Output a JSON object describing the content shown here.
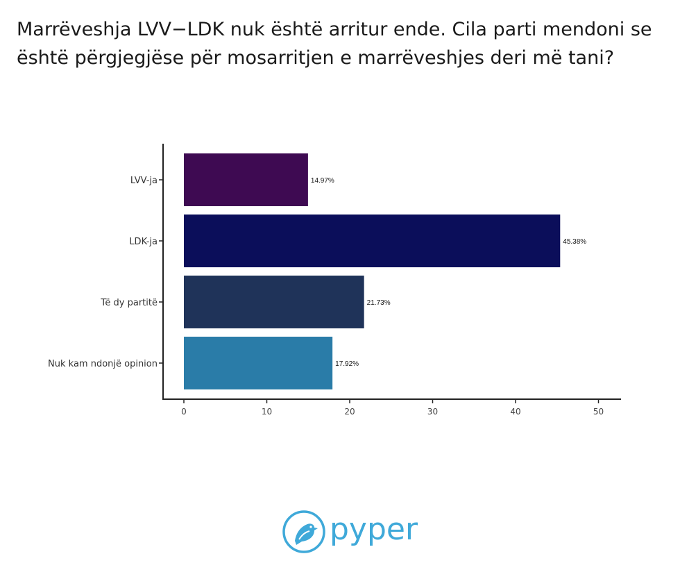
{
  "chart_data": {
    "type": "bar",
    "orientation": "horizontal",
    "title": "Marrëveshja LVV−LDK nuk është arritur ende. Cila parti mendoni se është përgjegjëse për mosarritjen e marrëveshjes deri më tani?",
    "categories": [
      "LVV-ja",
      "LDK-ja",
      "Të dy partitë",
      "Nuk kam ndonjë opinion"
    ],
    "values": [
      14.97,
      45.38,
      21.73,
      17.92
    ],
    "value_labels": [
      "14.97%",
      "45.38%",
      "21.73%",
      "17.92%"
    ],
    "colors": [
      "#3e0a52",
      "#0b0e5a",
      "#1f3359",
      "#2a7ca8"
    ],
    "xlim": [
      0,
      53
    ],
    "x_ticks": [
      0,
      10,
      20,
      30,
      40,
      50
    ],
    "xlabel": "",
    "ylabel": "",
    "grid": false,
    "legend": "none"
  },
  "brand": {
    "name": "pyper",
    "color": "#3fa9d9",
    "icon": "bird-icon"
  }
}
